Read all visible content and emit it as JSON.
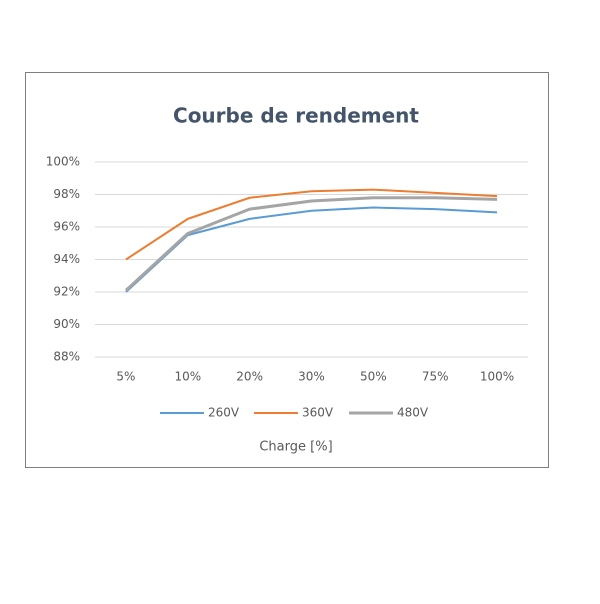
{
  "chart_data": {
    "type": "line",
    "title": "Courbe de rendement",
    "x_label": "Charge [%]",
    "categories": [
      "5%",
      "10%",
      "20%",
      "30%",
      "50%",
      "75%",
      "100%"
    ],
    "series": [
      {
        "name": "260V",
        "color": "#5b9bd5",
        "values": [
          92.0,
          95.5,
          96.5,
          97.0,
          97.2,
          97.1,
          96.9
        ]
      },
      {
        "name": "360V",
        "color": "#ed7d31",
        "values": [
          94.0,
          96.5,
          97.8,
          98.2,
          98.3,
          98.1,
          97.9
        ]
      },
      {
        "name": "480V",
        "color": "#a5a5a5",
        "values": [
          92.1,
          95.6,
          97.1,
          97.6,
          97.8,
          97.8,
          97.7
        ]
      }
    ],
    "ylim": [
      88,
      100
    ],
    "yticks": [
      {
        "value": 88,
        "label": "88%"
      },
      {
        "value": 90,
        "label": "90%"
      },
      {
        "value": 92,
        "label": "92%"
      },
      {
        "value": 94,
        "label": "94%"
      },
      {
        "value": 96,
        "label": "96%"
      },
      {
        "value": 98,
        "label": "98%"
      },
      {
        "value": 100,
        "label": "100%"
      }
    ],
    "grid": true,
    "legend": "bottom"
  }
}
